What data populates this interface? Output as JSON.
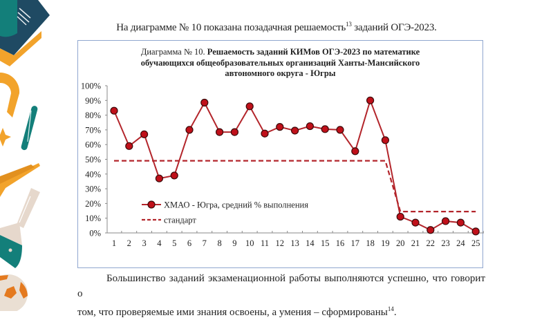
{
  "intro": {
    "text": "На диаграмме № 10 показана позадачная решаемость",
    "footnote": "13",
    "text_after": " заданий ОГЭ-2023."
  },
  "chart_title": {
    "prefix": "Диаграмма № 10. ",
    "bold_line1": "Решаемость заданий КИМов ОГЭ-2023 по математике",
    "bold_line2": "обучающихся общеобразовательных  организаций Ханты-Мансийского",
    "bold_line3": "автономного округа - Югры"
  },
  "chart_data": {
    "type": "line",
    "title": "Диаграмма № 10. Решаемость заданий КИМов ОГЭ-2023 по математике обучающихся общеобразовательных организаций Ханты-Мансийского автономного округа - Югры",
    "xlabel": "",
    "ylabel": "",
    "x": [
      1,
      2,
      3,
      4,
      5,
      6,
      7,
      8,
      9,
      10,
      11,
      12,
      13,
      14,
      15,
      16,
      17,
      18,
      19,
      20,
      21,
      22,
      23,
      24,
      25
    ],
    "ylim": [
      0,
      100
    ],
    "yticks": [
      "0%",
      "10%",
      "20%",
      "30%",
      "40%",
      "50%",
      "60%",
      "70%",
      "80%",
      "90%",
      "100%"
    ],
    "grid": false,
    "legend_position": "inside-lower-left",
    "series": [
      {
        "name": "ХМАО - Югра, средний % выполнения",
        "style": "solid-line-circle-markers",
        "color": "#b3252b",
        "values": [
          83,
          59,
          67,
          37,
          39,
          70,
          88.5,
          68.5,
          68.5,
          86,
          67.5,
          72,
          69.5,
          72.5,
          70.5,
          70,
          55.5,
          90,
          63,
          11,
          7,
          2,
          8,
          7,
          1
        ]
      },
      {
        "name": "стандарт",
        "style": "dashed",
        "color": "#b3252b",
        "values": [
          49,
          49,
          49,
          49,
          49,
          49,
          49,
          49,
          49,
          49,
          49,
          49,
          49,
          49,
          49,
          49,
          49,
          49,
          49,
          14.5,
          14.5,
          14.5,
          14.5,
          14.5,
          14.5
        ]
      }
    ]
  },
  "legend": {
    "series1": "ХМАО - Югра, средний % выполнения",
    "series2": "стандарт"
  },
  "paragraph": {
    "line1": "Большинство заданий экзаменационной работы выполняются успешно, что говорит о",
    "line2": "том, что проверяемые ими знания освоены, а умения – сформированы",
    "footnote": "14",
    "end": "."
  },
  "colors": {
    "series": "#b3252b",
    "marker_fill": "#c0101a",
    "marker_stroke": "#3a0a0a",
    "box_border": "#8fa6cf"
  }
}
